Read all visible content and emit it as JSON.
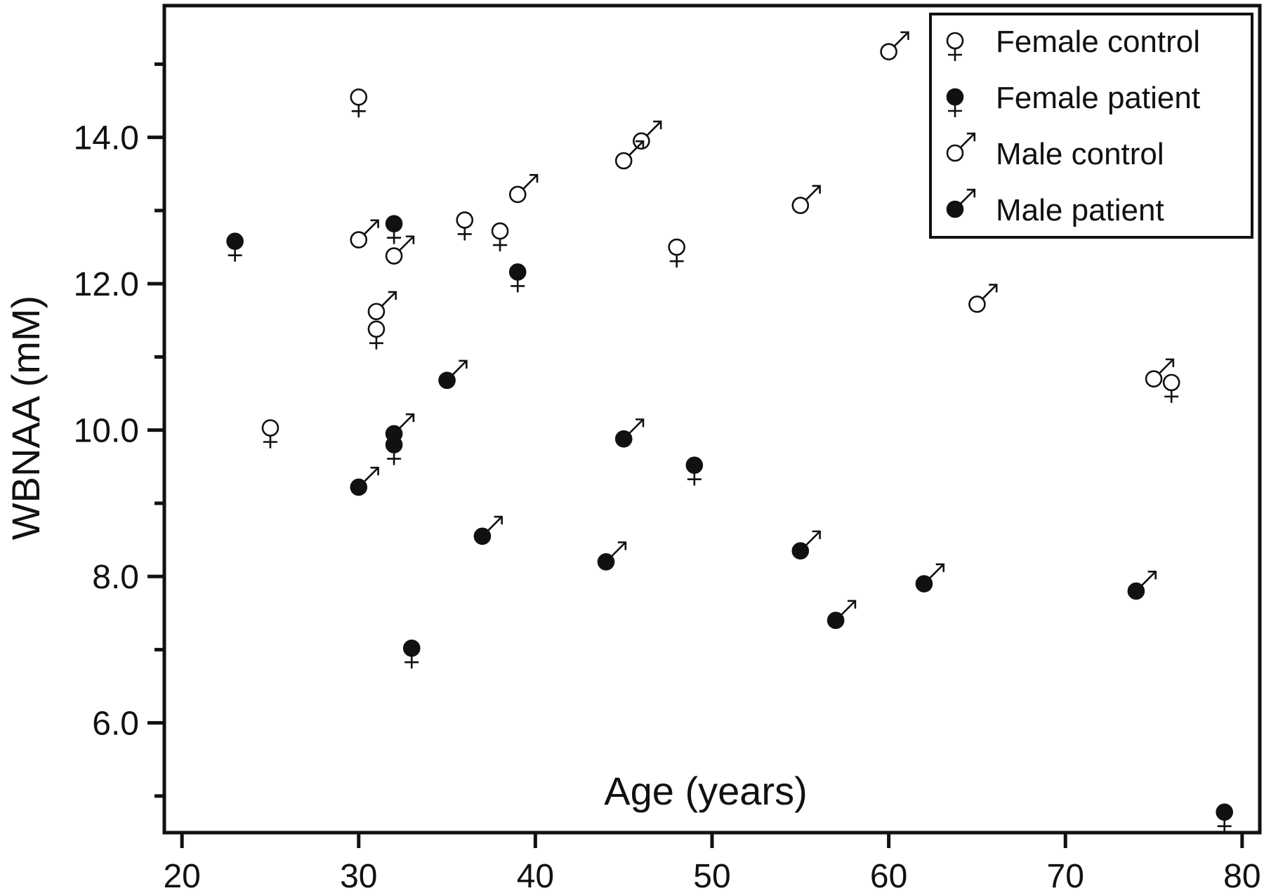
{
  "chart_data": {
    "type": "scatter",
    "xlabel": "Age (years)",
    "ylabel": "WBNAA (mM)",
    "xlim": [
      19,
      81
    ],
    "ylim": [
      4.5,
      15.8
    ],
    "x_ticks": [
      20,
      30,
      40,
      50,
      60,
      70,
      80
    ],
    "x_tick_labels": [
      "20",
      "30",
      "40",
      "50",
      "60",
      "70",
      "80"
    ],
    "y_major_ticks": [
      6,
      8,
      10,
      12,
      14
    ],
    "y_tick_labels": [
      "6.0",
      "8.0",
      "10.0",
      "12.0",
      "14.0"
    ],
    "y_minor_ticks": [
      5,
      7,
      9,
      11,
      13,
      15
    ],
    "grid": false,
    "legend_position": "top-right",
    "series": [
      {
        "name": "Female control",
        "filled": false,
        "symbol": "female",
        "points": [
          {
            "x": 30,
            "y": 14.55
          },
          {
            "x": 36,
            "y": 12.87
          },
          {
            "x": 38,
            "y": 12.72
          },
          {
            "x": 48,
            "y": 12.5
          },
          {
            "x": 31,
            "y": 11.38
          },
          {
            "x": 25,
            "y": 10.03
          },
          {
            "x": 76,
            "y": 10.65
          }
        ]
      },
      {
        "name": "Female patient",
        "filled": true,
        "symbol": "female",
        "points": [
          {
            "x": 23,
            "y": 12.58
          },
          {
            "x": 32,
            "y": 12.82
          },
          {
            "x": 39,
            "y": 12.16
          },
          {
            "x": 32,
            "y": 9.8
          },
          {
            "x": 49,
            "y": 9.52
          },
          {
            "x": 33,
            "y": 7.02
          },
          {
            "x": 79,
            "y": 4.78
          }
        ]
      },
      {
        "name": "Male control",
        "filled": false,
        "symbol": "male",
        "points": [
          {
            "x": 60,
            "y": 15.17
          },
          {
            "x": 46,
            "y": 13.95
          },
          {
            "x": 45,
            "y": 13.68
          },
          {
            "x": 39,
            "y": 13.22
          },
          {
            "x": 55,
            "y": 13.07
          },
          {
            "x": 30,
            "y": 12.6
          },
          {
            "x": 32,
            "y": 12.38
          },
          {
            "x": 31,
            "y": 11.62
          },
          {
            "x": 65,
            "y": 11.72
          },
          {
            "x": 75,
            "y": 10.7
          }
        ]
      },
      {
        "name": "Male patient",
        "filled": true,
        "symbol": "male",
        "points": [
          {
            "x": 35,
            "y": 10.68
          },
          {
            "x": 32,
            "y": 9.95
          },
          {
            "x": 45,
            "y": 9.88
          },
          {
            "x": 30,
            "y": 9.22
          },
          {
            "x": 37,
            "y": 8.55
          },
          {
            "x": 44,
            "y": 8.2
          },
          {
            "x": 55,
            "y": 8.35
          },
          {
            "x": 62,
            "y": 7.9
          },
          {
            "x": 74,
            "y": 7.8
          },
          {
            "x": 57,
            "y": 7.4
          }
        ]
      }
    ]
  }
}
